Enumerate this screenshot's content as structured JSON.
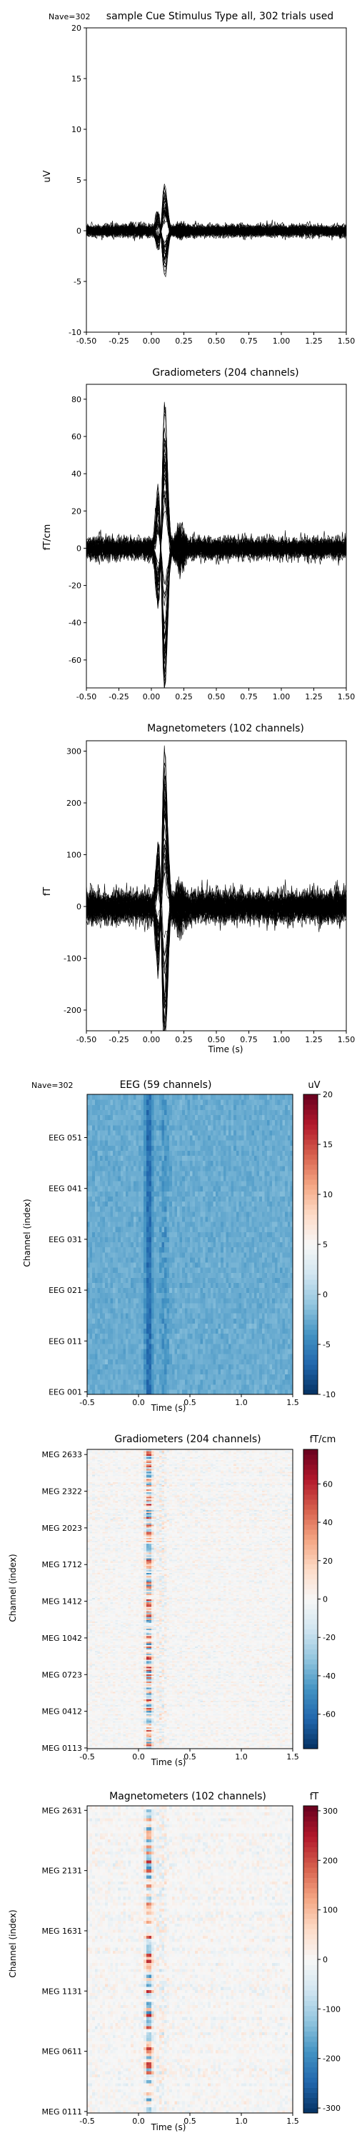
{
  "figure": {
    "background": "#ffffff"
  },
  "chart_data": [
    {
      "type": "line",
      "title": "sample Cue Stimulus Type all, 302 trials used",
      "nave_label": "Nave=302",
      "xlabel": "",
      "ylabel": "uV",
      "xlim": [
        -0.5,
        1.5
      ],
      "ylim": [
        -10,
        20
      ],
      "xticks": [
        "-0.50",
        "-0.25",
        "0.00",
        "0.25",
        "0.50",
        "0.75",
        "1.00",
        "1.25",
        "1.50"
      ],
      "yticks": [
        "-10",
        "-5",
        "0",
        "5",
        "10",
        "15",
        "20"
      ],
      "series_summary": {
        "n_channels": 59,
        "peak_time": 0.1,
        "peak_amplitude": 4.5,
        "trough_amplitude": -3.5,
        "baseline_noise": 0.8
      },
      "color": "#000000"
    },
    {
      "type": "line",
      "title": "Gradiometers (204 channels)",
      "xlabel": "",
      "ylabel": "fT/cm",
      "xlim": [
        -0.5,
        1.5
      ],
      "ylim": [
        -75,
        88
      ],
      "xticks": [
        "-0.50",
        "-0.25",
        "0.00",
        "0.25",
        "0.50",
        "0.75",
        "1.00",
        "1.25",
        "1.50"
      ],
      "yticks": [
        "-60",
        "-40",
        "-20",
        "0",
        "20",
        "40",
        "60",
        "80"
      ],
      "series_summary": {
        "n_channels": 204,
        "peak_time": 0.1,
        "peak_amplitude": 78,
        "trough_amplitude": -68,
        "baseline_noise": 8
      },
      "color": "#000000"
    },
    {
      "type": "line",
      "title": "Magnetometers (102 channels)",
      "xlabel": "Time (s)",
      "ylabel": "fT",
      "xlim": [
        -0.5,
        1.5
      ],
      "ylim": [
        -240,
        320
      ],
      "xticks": [
        "-0.50",
        "-0.25",
        "0.00",
        "0.25",
        "0.50",
        "0.75",
        "1.00",
        "1.25",
        "1.50"
      ],
      "yticks": [
        "-200",
        "-100",
        "0",
        "100",
        "200",
        "300"
      ],
      "series_summary": {
        "n_channels": 102,
        "peak_time": 0.1,
        "peak_amplitude": 300,
        "trough_amplitude": -210,
        "baseline_noise": 40
      },
      "color": "#000000"
    },
    {
      "type": "heatmap",
      "title": "EEG (59 channels)",
      "nave_label": "Nave=302",
      "xlabel": "Time (s)",
      "ylabel": "Channel (index)",
      "xlim": [
        -0.5,
        1.5
      ],
      "xticks": [
        "-0.5",
        "0.0",
        "0.5",
        "1.0",
        "1.5"
      ],
      "yticks": [
        "EEG 001",
        "EEG 011",
        "EEG 021",
        "EEG 031",
        "EEG 041",
        "EEG 051"
      ],
      "n_rows": 59,
      "colorbar": {
        "label": "uV",
        "vmin": -10,
        "vmax": 20,
        "ticks": [
          "-10",
          "-5",
          "0",
          "5",
          "10",
          "15",
          "20"
        ]
      },
      "colormap": "RdBu_r"
    },
    {
      "type": "heatmap",
      "title": "Gradiometers (204 channels)",
      "xlabel": "Time (s)",
      "ylabel": "Channel (index)",
      "xlim": [
        -0.5,
        1.5
      ],
      "xticks": [
        "-0.5",
        "0.0",
        "0.5",
        "1.0",
        "1.5"
      ],
      "yticks": [
        "MEG 0113",
        "MEG 0412",
        "MEG 0723",
        "MEG 1042",
        "MEG 1412",
        "MEG 1712",
        "MEG 2023",
        "MEG 2322",
        "MEG 2633"
      ],
      "n_rows": 204,
      "colorbar": {
        "label": "fT/cm",
        "vmin": -78,
        "vmax": 78,
        "ticks": [
          "-60",
          "-40",
          "-20",
          "0",
          "20",
          "40",
          "60"
        ]
      },
      "colormap": "RdBu_r"
    },
    {
      "type": "heatmap",
      "title": "Magnetometers (102 channels)",
      "xlabel": "Time (s)",
      "ylabel": "Channel (index)",
      "xlim": [
        -0.5,
        1.5
      ],
      "xticks": [
        "-0.5",
        "0.0",
        "0.5",
        "1.0",
        "1.5"
      ],
      "yticks": [
        "MEG 0111",
        "MEG 0611",
        "MEG 1131",
        "MEG 1631",
        "MEG 2131",
        "MEG 2631"
      ],
      "n_rows": 102,
      "colorbar": {
        "label": "fT",
        "vmin": -310,
        "vmax": 310,
        "ticks": [
          "-300",
          "-200",
          "-100",
          "0",
          "100",
          "200",
          "300"
        ]
      },
      "colormap": "RdBu_r"
    }
  ]
}
